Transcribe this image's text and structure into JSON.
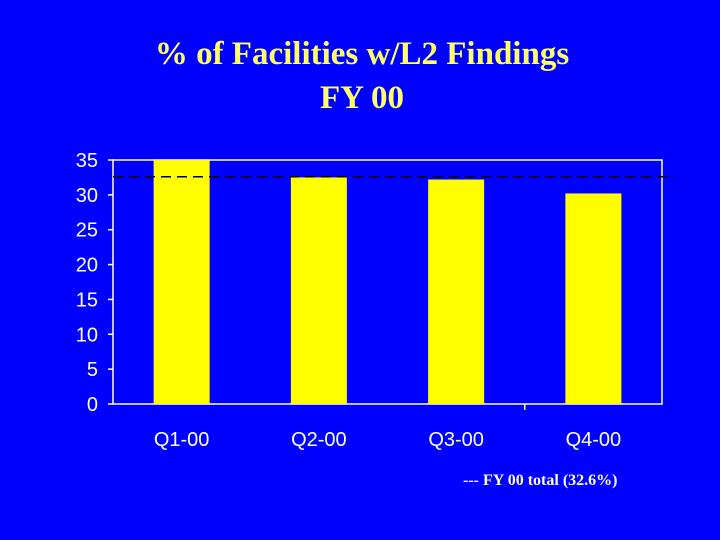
{
  "chart_data": {
    "type": "bar",
    "title_line1": "% of Facilities w/L2 Findings",
    "title_line2": "FY 00",
    "categories": [
      "Q1-00",
      "Q2-00",
      "Q3-00",
      "Q4-00"
    ],
    "values": [
      35,
      32.5,
      32.2,
      30.2
    ],
    "ylim": [
      0,
      35
    ],
    "yticks": [
      0,
      5,
      10,
      15,
      20,
      25,
      30,
      35
    ],
    "reference_line": {
      "value": 32.6,
      "style": "dashed"
    },
    "footnote": "--- FY 00 total (32.6%)",
    "grid": false,
    "colors": {
      "background": "#0000ff",
      "bar": "#ffff00",
      "title": "#ffff66",
      "text": "#ffffff",
      "axis": "#ffffff"
    }
  }
}
